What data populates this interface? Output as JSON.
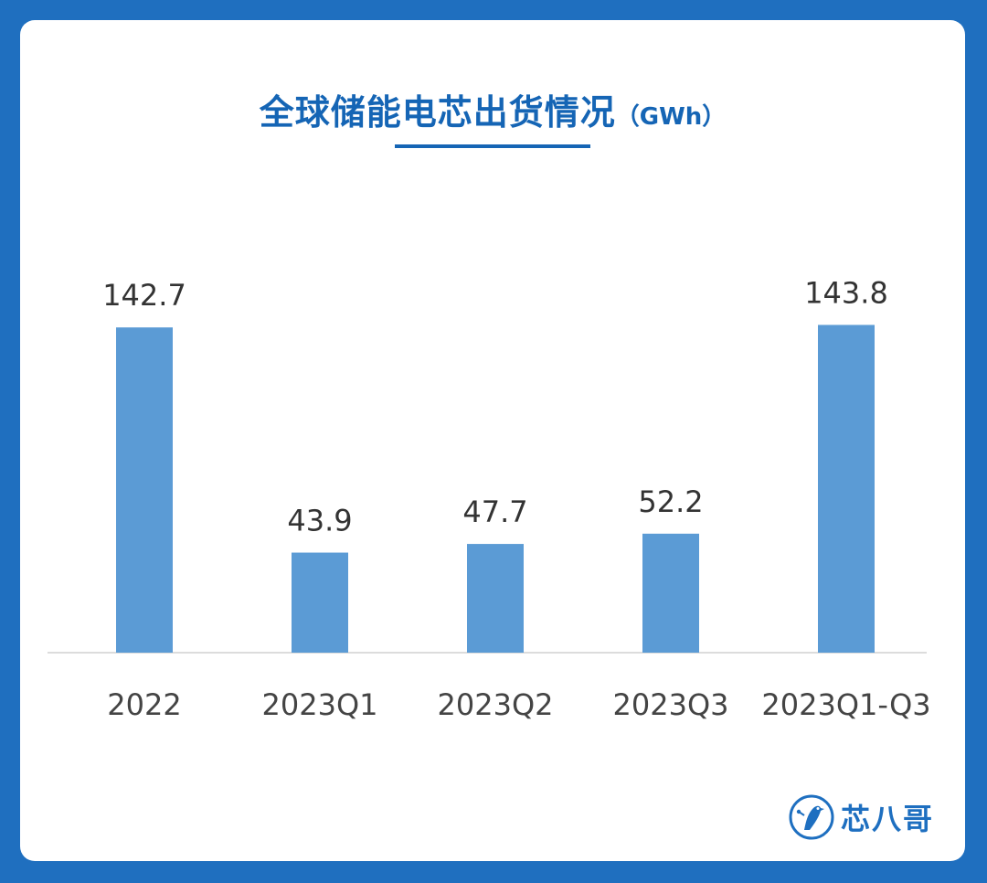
{
  "chart_data": {
    "type": "bar",
    "title": "全球储能电芯出货情况",
    "title_unit": "（GWh）",
    "categories": [
      "2022",
      "2023Q1",
      "2023Q2",
      "2023Q3",
      "2023Q1-Q3"
    ],
    "values": [
      142.7,
      43.9,
      47.7,
      52.2,
      143.8
    ],
    "ylim": [
      0,
      150
    ],
    "xlabel": "",
    "ylabel": "",
    "grid": false,
    "bar_color": "#5b9bd5",
    "label_color": "#333333",
    "axis_color": "#d0d0d0"
  },
  "brand": {
    "name": "芯八哥",
    "accent": "#1e6fc0",
    "icon": "bird-logo-icon"
  },
  "colors": {
    "background": "#1f6fbf",
    "card": "#ffffff",
    "title": "#1565b5"
  }
}
